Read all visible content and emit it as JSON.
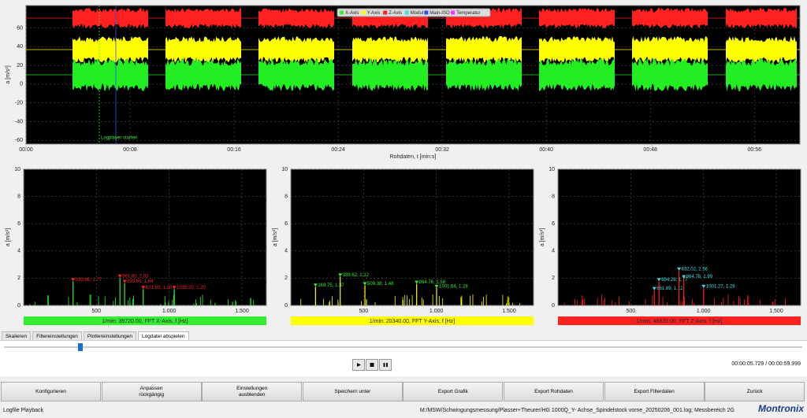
{
  "top_chart": {
    "type": "line",
    "xlabel": "Rohdaten, t [min:s]",
    "ylabel": "a [m/s²]",
    "xlim": [
      0,
      59.5
    ],
    "ylim": [
      -64,
      84
    ],
    "xticks": [
      {
        "value": 0,
        "label": "00:00"
      },
      {
        "value": 8,
        "label": "00:08"
      },
      {
        "value": 16,
        "label": "00:16"
      },
      {
        "value": 24,
        "label": "00:24"
      },
      {
        "value": 32,
        "label": "00:32"
      },
      {
        "value": 40,
        "label": "00:40"
      },
      {
        "value": 48,
        "label": "00:48"
      },
      {
        "value": 56,
        "label": "00:56"
      }
    ],
    "yticks": [
      -60,
      -40,
      -20,
      0,
      20,
      40,
      60
    ],
    "legend": [
      {
        "name": "X-Axis",
        "color": "#33ee33"
      },
      {
        "name": "Y-Axis",
        "color": "#ffff00"
      },
      {
        "name": "Z-Axis",
        "color": "#ff2020"
      },
      {
        "name": "Modul",
        "color": "#40e0e0"
      },
      {
        "name": "Main-ISO",
        "color": "#3050ff"
      },
      {
        "name": "Temperatur",
        "color": "#ff30ff"
      }
    ],
    "annotation": "Logplayer starten"
  },
  "fft_charts": [
    {
      "type": "bar",
      "ylabel": "a [m/s²]",
      "xlim": [
        0,
        1668
      ],
      "ylim": [
        0,
        10
      ],
      "color": "#33ee33",
      "marker_color": "#ff2020",
      "xticks": [
        500,
        {
          "value": 1000,
          "label": "1.000"
        },
        {
          "value": 1500,
          "label": "1.500"
        }
      ],
      "yticks": [
        0,
        2,
        4,
        6,
        8,
        10
      ],
      "peaks": [
        {
          "x": 339.66,
          "y": 1.77,
          "label": "339.66, 1.77"
        },
        {
          "x": 661.8,
          "y": 2.03,
          "label": "661.80, 2.03"
        },
        {
          "x": 693.69,
          "y": 1.64,
          "label": "693.69, 1.64"
        },
        {
          "x": 821.93,
          "y": 1.2,
          "label": "821.93, 1.20"
        },
        {
          "x": 1035.2,
          "y": 1.2,
          "label": "1035.20, 1.20"
        }
      ],
      "footer": "1/min: 39720.00, FFT X-Axis, f [Hz]"
    },
    {
      "type": "bar",
      "ylabel": "a [m/s²]",
      "xlim": [
        0,
        1668
      ],
      "ylim": [
        0,
        10
      ],
      "color": "#ffff00",
      "marker_color": "#33ee33",
      "xticks": [
        500,
        {
          "value": 1000,
          "label": "1.000"
        },
        {
          "value": 1500,
          "label": "1.500"
        }
      ],
      "yticks": [
        0,
        2,
        4,
        6,
        8,
        10
      ],
      "peaks": [
        {
          "x": 169.75,
          "y": 1.37,
          "label": "169.75, 1.37"
        },
        {
          "x": 339.62,
          "y": 2.12,
          "label": "339.62, 2.12"
        },
        {
          "x": 509.38,
          "y": 1.48,
          "label": "509.38, 1.48"
        },
        {
          "x": 864.76,
          "y": 1.58,
          "label": "864.76, 1.58"
        },
        {
          "x": 1001.84,
          "y": 1.28,
          "label": "1001.84, 1.28"
        }
      ],
      "footer": "1/min: 20340.00, FFT Y-Axis, f [Hz]"
    },
    {
      "type": "bar",
      "ylabel": "a [m/s²]",
      "xlim": [
        0,
        1668
      ],
      "ylim": [
        0,
        10
      ],
      "color": "#ff2020",
      "marker_color": "#40e0e0",
      "xticks": [
        500,
        {
          "value": 1000,
          "label": "1.000"
        },
        {
          "value": 1500,
          "label": "1.500"
        }
      ],
      "yticks": [
        0,
        2,
        4,
        6,
        8,
        10
      ],
      "peaks": [
        {
          "x": 661.89,
          "y": 1.12,
          "label": "661.89, 1.12"
        },
        {
          "x": 694.28,
          "y": 1.77,
          "label": "694.28, 1.77"
        },
        {
          "x": 832.02,
          "y": 2.56,
          "label": "832.02, 2.56"
        },
        {
          "x": 864.78,
          "y": 1.99,
          "label": "864.78, 1.99"
        },
        {
          "x": 1001.27,
          "y": 1.28,
          "label": "1001.27, 1.28"
        }
      ],
      "footer": "1/min: 48820.00, FFT Z-Axis, f [Hz]"
    }
  ],
  "tabs": [
    "Skalieren",
    "Filtereinstellungen",
    "Plottereinstellungen",
    "Logdatei abspielen"
  ],
  "active_tab": 3,
  "playback": {
    "position": 5.729,
    "duration": 59.999,
    "time_label": "00:00:05.729 / 00:00:59.999"
  },
  "buttons": [
    [
      "Konfigurieren"
    ],
    [
      "Anpassen",
      "rückgängig"
    ],
    [
      "Einstellungen",
      "ausblenden"
    ],
    [
      "Speichern unter"
    ],
    [
      "Export Grafik"
    ],
    [
      "Export Rohdaten"
    ],
    [
      "Export Filterdaten"
    ],
    [
      "Zurück"
    ]
  ],
  "status": {
    "left": "Logfile Playback",
    "path": "M:/MSW/Schwingungsmessung/Plasser+Theurer/HG 1000Q_Y- Achse_Spindelstock vorne_20250206_001.log; Messbereich 2G",
    "logo": "Montronix"
  }
}
